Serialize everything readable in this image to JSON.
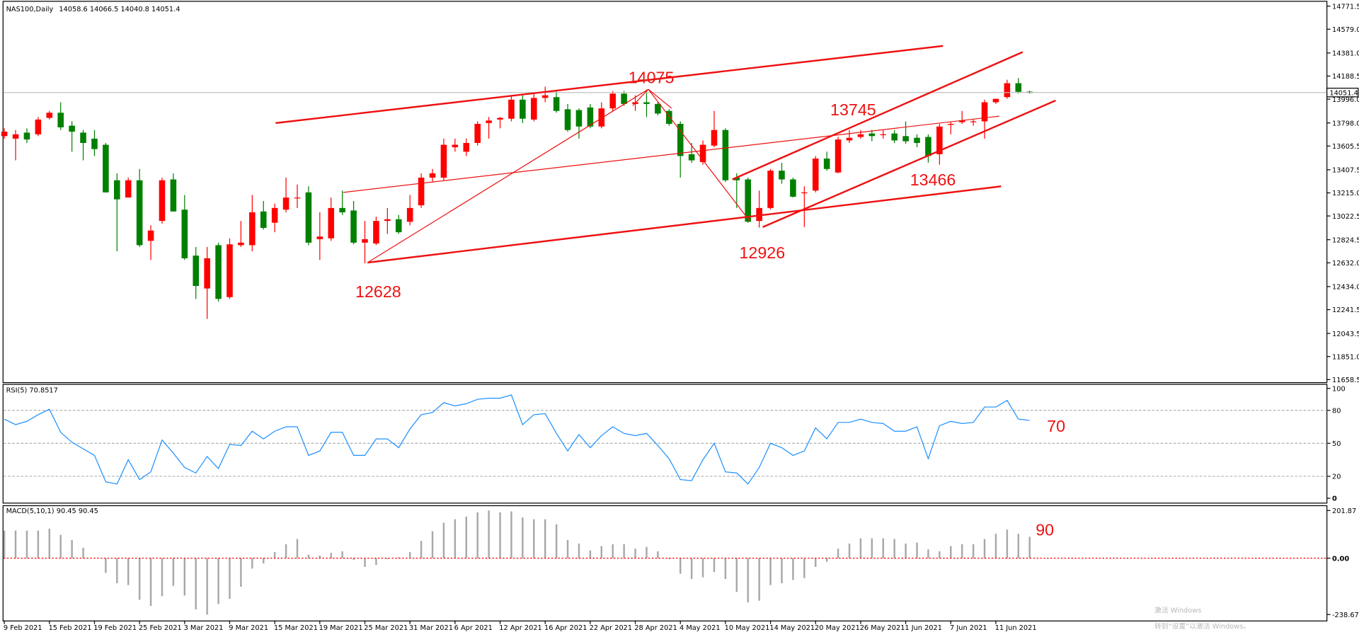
{
  "symbol": "NAS100,Daily",
  "annotations": [
    "14075",
    "13745",
    "12628",
    "12926",
    "13466"
  ],
  "rsi_annotation": "70",
  "macd_annotation": "90",
  "watermark": {
    "title": "激活 Windows",
    "subtitle": "转到“设置”以激活 Windows。"
  },
  "chart_data": [
    {
      "type": "candlestick",
      "up_color": "#ff0000",
      "down_color": "#008000",
      "price_line_color": "#c0c0c0",
      "categories": [
        "9 Feb 2021",
        null,
        null,
        null,
        "15 Feb 2021",
        null,
        null,
        null,
        "19 Feb 2021",
        null,
        null,
        null,
        "25 Feb 2021",
        null,
        null,
        null,
        "3 Mar 2021",
        null,
        null,
        null,
        "9 Mar 2021",
        null,
        null,
        null,
        "15 Mar 2021",
        null,
        null,
        null,
        "19 Mar 2021",
        null,
        null,
        null,
        "25 Mar 2021",
        null,
        null,
        null,
        "31 Mar 2021",
        null,
        null,
        null,
        "6 Apr 2021",
        null,
        null,
        null,
        "12 Apr 2021",
        null,
        null,
        null,
        "16 Apr 2021",
        null,
        null,
        null,
        "22 Apr 2021",
        null,
        null,
        null,
        "28 Apr 2021",
        null,
        null,
        null,
        "4 May 2021",
        null,
        null,
        null,
        "10 May 2021",
        null,
        null,
        null,
        "14 May 2021",
        null,
        null,
        null,
        "20 May 2021",
        null,
        null,
        null,
        "26 May 2021",
        null,
        null,
        null,
        "1 Jun 2021",
        null,
        null,
        null,
        "7 Jun 2021",
        null,
        null,
        null,
        "11 Jun 2021",
        null,
        null,
        null
      ],
      "open": [
        13688,
        13667,
        13717,
        13703,
        13840,
        13883,
        13775,
        13717,
        13667,
        13616,
        13320,
        13176,
        13320,
        12815,
        12981,
        13327,
        13075,
        12692,
        12418,
        12779,
        12346,
        12779,
        12779,
        13060,
        12966,
        13075,
        13169,
        13219,
        12829,
        12836,
        13089,
        13068,
        12800,
        12793,
        12981,
        12995,
        12974,
        13111,
        13342,
        13342,
        13595,
        13558,
        13631,
        13797,
        13826,
        13833,
        13992,
        13826,
        14006,
        14013,
        13912,
        13905,
        13927,
        13768,
        13919,
        14042,
        13956,
        13970,
        13956,
        13898,
        13790,
        13537,
        13472,
        13609,
        13739,
        13342,
        13327,
        12981,
        13089,
        13400,
        13327,
        13212,
        13234,
        13501,
        13385,
        13652,
        13681,
        13710,
        13696,
        13710,
        13688,
        13674,
        13681,
        13537,
        13782,
        13804,
        13804,
        13811,
        13970,
        14013,
        14129,
        14058.6
      ],
      "high": [
        13753,
        13739,
        13753,
        13847,
        13898,
        13970,
        13811,
        13739,
        13739,
        13631,
        13378,
        13342,
        13414,
        12945,
        13342,
        13378,
        13197,
        12764,
        12764,
        12800,
        12836,
        12981,
        13197,
        13147,
        13125,
        13342,
        13284,
        13270,
        13053,
        13176,
        13234,
        13147,
        12981,
        13017,
        13089,
        13031,
        13197,
        13378,
        13414,
        13667,
        13667,
        13667,
        13811,
        13847,
        13847,
        14028,
        14028,
        14042,
        14100,
        14064,
        13956,
        13919,
        13956,
        13970,
        14064,
        14064,
        14028,
        14075,
        13970,
        13912,
        13811,
        13631,
        13652,
        13898,
        13753,
        13378,
        13342,
        13234,
        13414,
        13465,
        13342,
        13270,
        13522,
        13558,
        13681,
        13739,
        13739,
        13739,
        13739,
        13739,
        13811,
        13703,
        13703,
        13790,
        13811,
        13898,
        13826,
        13992,
        13999,
        14158,
        14172,
        14066.5
      ],
      "low": [
        13667,
        13486,
        13631,
        13688,
        13826,
        13739,
        13558,
        13486,
        13522,
        13219,
        12728,
        13176,
        12764,
        12656,
        12959,
        13060,
        12656,
        12331,
        12165,
        12309,
        12331,
        12764,
        12728,
        12909,
        12887,
        13053,
        13089,
        12779,
        12656,
        12815,
        13031,
        12786,
        12628,
        12779,
        12873,
        12873,
        12945,
        13089,
        13306,
        13320,
        13558,
        13522,
        13609,
        13667,
        13753,
        13811,
        13797,
        13811,
        13970,
        13883,
        13725,
        13667,
        13753,
        13753,
        13898,
        13941,
        13898,
        13847,
        13862,
        13775,
        13342,
        13465,
        13450,
        13595,
        13306,
        13089,
        12966,
        12926,
        13075,
        13291,
        13176,
        12930,
        13219,
        13400,
        13378,
        13631,
        13667,
        13645,
        13667,
        13631,
        13623,
        13595,
        13466,
        13450,
        13703,
        13790,
        13775,
        13667,
        13956,
        13999,
        14042,
        14040.8
      ],
      "close": [
        13725,
        13703,
        13660,
        13826,
        13883,
        13761,
        13725,
        13631,
        13580,
        13219,
        13161,
        13320,
        12779,
        12901,
        13320,
        13060,
        12670,
        12439,
        12670,
        12331,
        12786,
        12800,
        13053,
        12923,
        13089,
        13176,
        13176,
        12800,
        12851,
        13089,
        13053,
        12800,
        12829,
        12981,
        12995,
        12887,
        13089,
        13342,
        13378,
        13616,
        13616,
        13631,
        13790,
        13818,
        13840,
        13992,
        13833,
        14006,
        14028,
        13898,
        13739,
        13768,
        13768,
        13919,
        14042,
        13956,
        13970,
        13956,
        13876,
        13790,
        13522,
        13486,
        13616,
        13739,
        13320,
        13320,
        12974,
        13089,
        13400,
        13327,
        13183,
        13219,
        13501,
        13414,
        13660,
        13674,
        13703,
        13688,
        13703,
        13652,
        13645,
        13631,
        13522,
        13768,
        13790,
        13818,
        13811,
        13970,
        13999,
        14129,
        14057,
        14051.4
      ],
      "ylim": [
        11637,
        14808
      ],
      "yticks": [
        14771.5,
        {
          "value": 14579,
          "label": "14579.0"
        },
        {
          "value": 14381,
          "label": "14381.0"
        },
        14188.5,
        {
          "value": 13996,
          "label": "13996.0"
        },
        {
          "value": 13798,
          "label": "13798.0"
        },
        13605.5,
        13407.5,
        {
          "value": 13215,
          "label": "13215.0"
        },
        13022.5,
        12824.5,
        {
          "value": 12632,
          "label": "12632.0"
        },
        {
          "value": 12434,
          "label": "12434.0"
        },
        12241.5,
        12043.5,
        {
          "value": 11851,
          "label": "11851.0"
        },
        11658.5
      ]
    },
    {
      "type": "line",
      "title": "RSI(5)",
      "color": "#1e90ff",
      "level_color": "#b0b0b0",
      "values": [
        72,
        67,
        70,
        76,
        81,
        60,
        51,
        45,
        39,
        15,
        13,
        35,
        17,
        24,
        53,
        41,
        28,
        23,
        38,
        27,
        49,
        48,
        61,
        54,
        61,
        65,
        65,
        39,
        43,
        60,
        60,
        39,
        39,
        54,
        54,
        46,
        63,
        76,
        78,
        87,
        84,
        86,
        90,
        91,
        91,
        94,
        67,
        76,
        77,
        59,
        43,
        58,
        46,
        57,
        65,
        59,
        57,
        59,
        48,
        36,
        17,
        16,
        35,
        50,
        24,
        23,
        13,
        28,
        50,
        46,
        39,
        43,
        64,
        54,
        69,
        69,
        72,
        69,
        68,
        61,
        61,
        65,
        36,
        66,
        70,
        68,
        69,
        83,
        83,
        89,
        72,
        70.8517
      ],
      "ylim": [
        -4,
        104
      ],
      "yticks": [
        100,
        80,
        50,
        20,
        0
      ],
      "levels": [
        80,
        50,
        20
      ]
    },
    {
      "type": "bar",
      "title": "MACD(5,10,1)",
      "color": "#a8a8a8",
      "zero_line_color": "#ff0000",
      "values": [
        117,
        117,
        117,
        117,
        125,
        99,
        77,
        44,
        2,
        -62,
        -106,
        -114,
        -176,
        -202,
        -161,
        -117,
        -158,
        -217,
        -239,
        -194,
        -172,
        -121,
        -44,
        -22,
        26,
        59,
        81,
        15,
        11,
        22,
        29,
        -7,
        -37,
        -29,
        -4,
        4,
        26,
        73,
        114,
        150,
        165,
        176,
        194,
        202,
        194,
        198,
        172,
        165,
        165,
        143,
        77,
        62,
        33,
        51,
        59,
        59,
        40,
        48,
        29,
        -4,
        -66,
        -88,
        -81,
        -59,
        -88,
        -143,
        -187,
        -180,
        -114,
        -106,
        -92,
        -84,
        -37,
        -15,
        40,
        62,
        84,
        84,
        84,
        81,
        62,
        66,
        37,
        29,
        51,
        59,
        59,
        81,
        103,
        121,
        103,
        90.45
      ],
      "ylim": [
        -264,
        224
      ],
      "yticks": [
        201.87,
        {
          "value": 0,
          "label": "0.00"
        },
        -238.67
      ]
    }
  ]
}
